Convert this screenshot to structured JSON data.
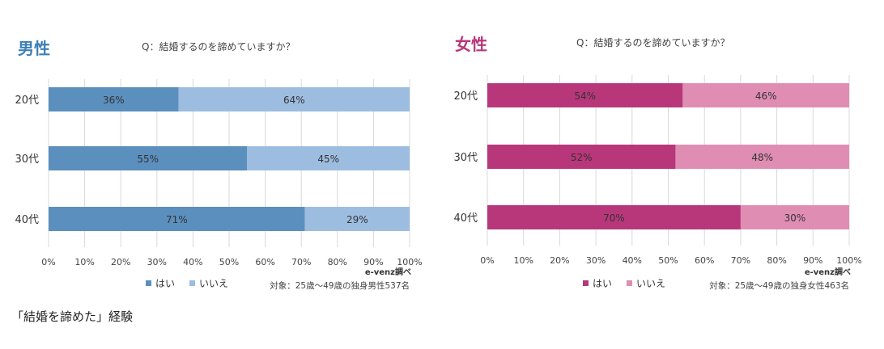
{
  "caption": "「結婚を諦めた」経験",
  "chart_data": [
    {
      "type": "bar",
      "stacked": true,
      "orientation": "horizontal",
      "heading": "男性",
      "title": "Q：結婚するのを諦めていますか？",
      "categories": [
        "20代",
        "30代",
        "40代"
      ],
      "series": [
        {
          "name": "はい",
          "values": [
            36,
            55,
            71
          ],
          "color": "#5b8fbe"
        },
        {
          "name": "いいえ",
          "values": [
            64,
            45,
            29
          ],
          "color": "#9dbde0"
        }
      ],
      "data_labels": [
        "36%",
        "64%",
        "55%",
        "45%",
        "71%",
        "29%"
      ],
      "xlim": [
        0,
        100
      ],
      "xticks": [
        "0%",
        "10%",
        "20%",
        "30%",
        "40%",
        "50%",
        "60%",
        "70%",
        "80%",
        "90%",
        "100%"
      ],
      "grid": true,
      "legend_position": "bottom-left",
      "source": "e-venz調べ",
      "note": "対象：25歳〜49歳の独身男性537名",
      "heading_color": "#3d7fb4"
    },
    {
      "type": "bar",
      "stacked": true,
      "orientation": "horizontal",
      "heading": "女性",
      "title": "Q：結婚するのを諦めていますか？",
      "categories": [
        "20代",
        "30代",
        "40代"
      ],
      "series": [
        {
          "name": "はい",
          "values": [
            54,
            52,
            70
          ],
          "color": "#b8377a"
        },
        {
          "name": "いいえ",
          "values": [
            46,
            48,
            30
          ],
          "color": "#e08db4"
        }
      ],
      "data_labels": [
        "54%",
        "46%",
        "52%",
        "48%",
        "70%",
        "30%"
      ],
      "xlim": [
        0,
        100
      ],
      "xticks": [
        "0%",
        "10%",
        "20%",
        "30%",
        "40%",
        "50%",
        "60%",
        "70%",
        "80%",
        "90%",
        "100%"
      ],
      "grid": true,
      "legend_position": "bottom-left",
      "source": "e-venz調べ",
      "note": "対象：25歳〜49歳の独身女性463名",
      "heading_color": "#b8377a"
    }
  ]
}
